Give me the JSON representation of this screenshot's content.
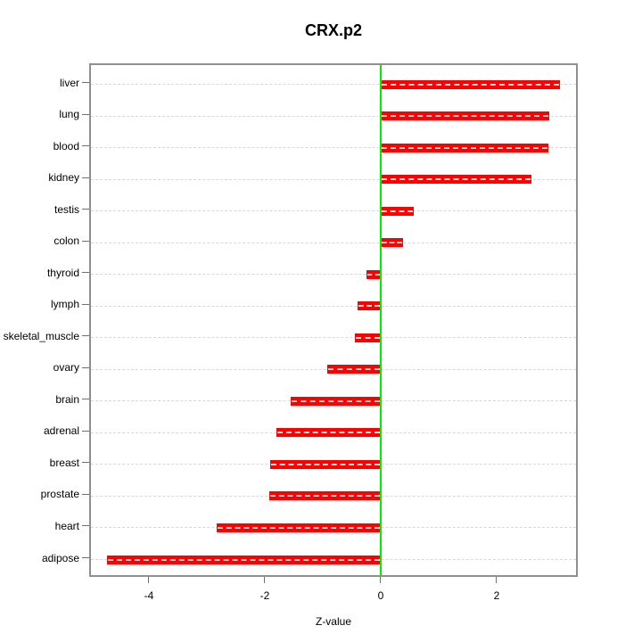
{
  "chart_data": {
    "type": "bar",
    "orientation": "horizontal",
    "title": "CRX.p2",
    "xlabel": "Z-value",
    "ylabel": "",
    "categories_top_to_bottom": [
      "liver",
      "lung",
      "blood",
      "kidney",
      "testis",
      "colon",
      "thyroid",
      "lymph",
      "skeletal_muscle",
      "ovary",
      "brain",
      "adrenal",
      "breast",
      "prostate",
      "heart",
      "adipose"
    ],
    "values": [
      3.1,
      2.91,
      2.89,
      2.6,
      0.57,
      0.39,
      -0.25,
      -0.4,
      -0.44,
      -0.93,
      -1.56,
      -1.8,
      -1.91,
      -1.93,
      -2.83,
      -4.72
    ],
    "x_ticks": [
      -4,
      -2,
      0,
      2
    ],
    "xlim": [
      -5.03,
      3.4
    ],
    "grid": "horizontal dashed line per category",
    "legend": "none",
    "colors": {
      "bar": "#ff0000",
      "zero_line": "#00ee00",
      "grid": "#d8d8d8",
      "box": "#8f8f8f",
      "tick": "#707070",
      "text": "#000000",
      "background": "#ffffff"
    }
  }
}
